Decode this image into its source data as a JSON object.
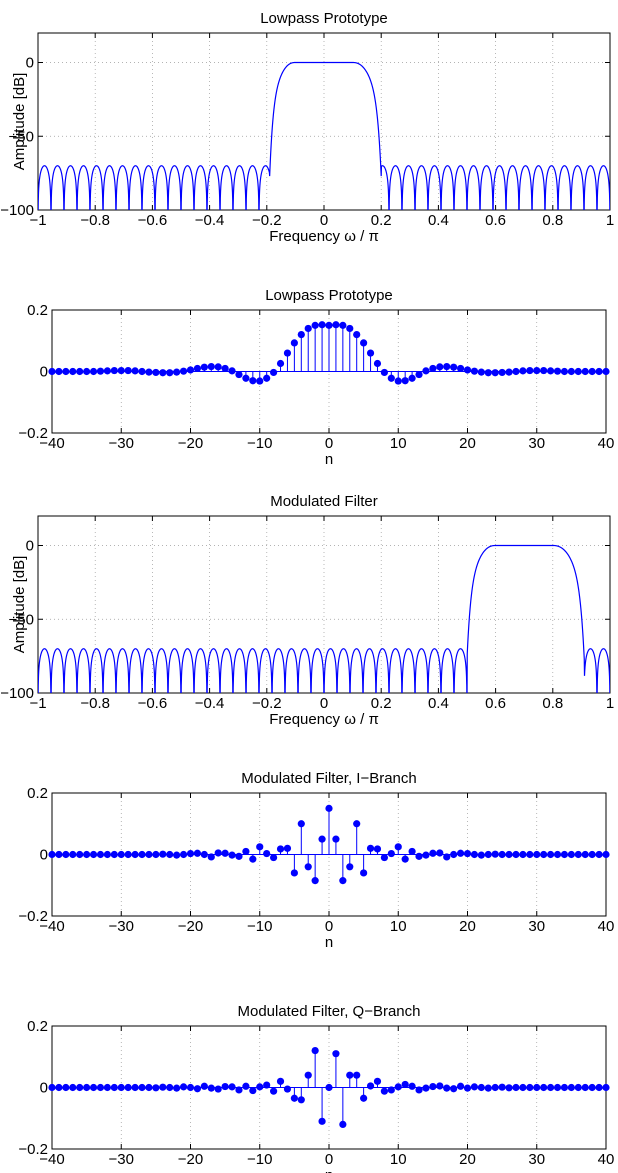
{
  "chart_data": [
    {
      "type": "line",
      "title": "Lowpass Prototype",
      "xlabel": "Frequency ω / π",
      "ylabel": "Amplitude [dB]",
      "xlim": [
        -1,
        1
      ],
      "ylim": [
        -100,
        20
      ],
      "xticks": [
        -1,
        -0.8,
        -0.6,
        -0.4,
        -0.2,
        0,
        0.2,
        0.4,
        0.6,
        0.8,
        1
      ],
      "xtick_labels": [
        "−1",
        "−0.8",
        "−0.6",
        "−0.4",
        "−0.2",
        "0",
        "0.2",
        "0.4",
        "0.6",
        "0.8",
        "1"
      ],
      "yticks": [
        -100,
        -50,
        0
      ],
      "ytick_labels": [
        "−100",
        "−50",
        "0"
      ],
      "grid": true,
      "color": "#0000ff",
      "response": {
        "passband": [
          -0.1,
          0.1
        ],
        "stopband_edges": [
          -0.19,
          0.2
        ],
        "stopband_peak_db": -70,
        "stopband_lobes_per_unit": 22
      }
    },
    {
      "type": "stem",
      "title": "Lowpass Prototype",
      "xlabel": "n",
      "ylabel": "",
      "xlim": [
        -40,
        40
      ],
      "ylim": [
        -0.2,
        0.2
      ],
      "xticks": [
        -40,
        -30,
        -20,
        -10,
        0,
        10,
        20,
        30,
        40
      ],
      "xtick_labels": [
        "−40",
        "−30",
        "−20",
        "−10",
        "0",
        "10",
        "20",
        "30",
        "40"
      ],
      "yticks": [
        -0.2,
        0,
        0.2
      ],
      "ytick_labels": [
        "−0.2",
        "0",
        "0.2"
      ],
      "grid": true,
      "color": "#0000ff",
      "n": [
        -40,
        -39,
        -38,
        -37,
        -36,
        -35,
        -34,
        -33,
        -32,
        -31,
        -30,
        -29,
        -28,
        -27,
        -26,
        -25,
        -24,
        -23,
        -22,
        -21,
        -20,
        -19,
        -18,
        -17,
        -16,
        -15,
        -14,
        -13,
        -12,
        -11,
        -10,
        -9,
        -8,
        -7,
        -6,
        -5,
        -4,
        -3,
        -2,
        -1,
        0,
        1,
        2,
        3,
        4,
        5,
        6,
        7,
        8,
        9,
        10,
        11,
        12,
        13,
        14,
        15,
        16,
        17,
        18,
        19,
        20,
        21,
        22,
        23,
        24,
        25,
        26,
        27,
        28,
        29,
        30,
        31,
        32,
        33,
        34,
        35,
        36,
        37,
        38,
        39,
        40
      ],
      "values": [
        0,
        0,
        0,
        0,
        0,
        0,
        0,
        0.001,
        0.002,
        0.003,
        0.003,
        0.003,
        0.002,
        0,
        -0.002,
        -0.003,
        -0.004,
        -0.004,
        -0.002,
        0.001,
        0.005,
        0.01,
        0.014,
        0.016,
        0.015,
        0.01,
        0.002,
        -0.01,
        -0.022,
        -0.03,
        -0.031,
        -0.022,
        -0.003,
        0.026,
        0.06,
        0.093,
        0.12,
        0.14,
        0.15,
        0.152,
        0.15,
        0.152,
        0.15,
        0.14,
        0.12,
        0.093,
        0.06,
        0.026,
        -0.003,
        -0.022,
        -0.031,
        -0.03,
        -0.022,
        -0.01,
        0.002,
        0.01,
        0.015,
        0.016,
        0.014,
        0.01,
        0.005,
        0.001,
        -0.002,
        -0.004,
        -0.004,
        -0.003,
        -0.002,
        0,
        0.002,
        0.003,
        0.003,
        0.003,
        0.002,
        0.001,
        0,
        0,
        0,
        0,
        0,
        0,
        0
      ]
    },
    {
      "type": "line",
      "title": "Modulated Filter",
      "xlabel": "Frequency ω / π",
      "ylabel": "Amplitude [dB]",
      "xlim": [
        -1,
        1
      ],
      "ylim": [
        -100,
        20
      ],
      "xticks": [
        -1,
        -0.8,
        -0.6,
        -0.4,
        -0.2,
        0,
        0.2,
        0.4,
        0.6,
        0.8,
        1
      ],
      "xtick_labels": [
        "−1",
        "−0.8",
        "−0.6",
        "−0.4",
        "−0.2",
        "0",
        "0.2",
        "0.4",
        "0.6",
        "0.8",
        "1"
      ],
      "yticks": [
        -100,
        -50,
        0
      ],
      "ytick_labels": [
        "−100",
        "−50",
        "0"
      ],
      "grid": true,
      "color": "#0000ff",
      "response": {
        "passband": [
          0.6,
          0.8
        ],
        "stopband_edges": [
          0.5,
          0.91
        ],
        "stopband_peak_db": -70,
        "stopband_lobes_per_unit": 22
      }
    },
    {
      "type": "stem",
      "title": "Modulated Filter, I−Branch",
      "xlabel": "n",
      "ylabel": "",
      "xlim": [
        -40,
        40
      ],
      "ylim": [
        -0.2,
        0.2
      ],
      "xticks": [
        -40,
        -30,
        -20,
        -10,
        0,
        10,
        20,
        30,
        40
      ],
      "xtick_labels": [
        "−40",
        "−30",
        "−20",
        "−10",
        "0",
        "10",
        "20",
        "30",
        "40"
      ],
      "yticks": [
        -0.2,
        0,
        0.2
      ],
      "ytick_labels": [
        "−0.2",
        "0",
        "0.2"
      ],
      "grid": true,
      "color": "#0000ff",
      "n": [
        -40,
        -39,
        -38,
        -37,
        -36,
        -35,
        -34,
        -33,
        -32,
        -31,
        -30,
        -29,
        -28,
        -27,
        -26,
        -25,
        -24,
        -23,
        -22,
        -21,
        -20,
        -19,
        -18,
        -17,
        -16,
        -15,
        -14,
        -13,
        -12,
        -11,
        -10,
        -9,
        -8,
        -7,
        -6,
        -5,
        -4,
        -3,
        -2,
        -1,
        0,
        1,
        2,
        3,
        4,
        5,
        6,
        7,
        8,
        9,
        10,
        11,
        12,
        13,
        14,
        15,
        16,
        17,
        18,
        19,
        20,
        21,
        22,
        23,
        24,
        25,
        26,
        27,
        28,
        29,
        30,
        31,
        32,
        33,
        34,
        35,
        36,
        37,
        38,
        39,
        40
      ],
      "values": [
        0,
        0,
        0,
        0,
        0,
        0,
        0,
        0,
        0,
        0,
        0,
        0,
        0,
        0,
        0,
        0,
        0.001,
        0,
        -0.002,
        0,
        0.003,
        0.004,
        0,
        -0.008,
        0.005,
        0.004,
        -0.002,
        -0.006,
        0.01,
        -0.015,
        0.025,
        0.003,
        -0.01,
        0.018,
        0.02,
        -0.06,
        0.1,
        -0.04,
        -0.085,
        0.05,
        0.15,
        0.05,
        -0.085,
        -0.04,
        0.1,
        -0.06,
        0.02,
        0.018,
        -0.01,
        0.003,
        0.025,
        -0.015,
        0.01,
        -0.006,
        -0.002,
        0.004,
        0.005,
        -0.008,
        0,
        0.004,
        0.003,
        0,
        -0.002,
        0,
        0.001,
        0,
        0,
        0,
        0,
        0,
        0,
        0,
        0,
        0,
        0,
        0,
        0,
        0,
        0,
        0,
        0
      ]
    },
    {
      "type": "stem",
      "title": "Modulated Filter, Q−Branch",
      "xlabel": "n",
      "ylabel": "",
      "xlim": [
        -40,
        40
      ],
      "ylim": [
        -0.2,
        0.2
      ],
      "xticks": [
        -40,
        -30,
        -20,
        -10,
        0,
        10,
        20,
        30,
        40
      ],
      "xtick_labels": [
        "−40",
        "−30",
        "−20",
        "−10",
        "0",
        "10",
        "20",
        "30",
        "40"
      ],
      "yticks": [
        -0.2,
        0,
        0.2
      ],
      "ytick_labels": [
        "−0.2",
        "0",
        "0.2"
      ],
      "grid": true,
      "color": "#0000ff",
      "n": [
        -40,
        -39,
        -38,
        -37,
        -36,
        -35,
        -34,
        -33,
        -32,
        -31,
        -30,
        -29,
        -28,
        -27,
        -26,
        -25,
        -24,
        -23,
        -22,
        -21,
        -20,
        -19,
        -18,
        -17,
        -16,
        -15,
        -14,
        -13,
        -12,
        -11,
        -10,
        -9,
        -8,
        -7,
        -6,
        -5,
        -4,
        -3,
        -2,
        -1,
        0,
        1,
        2,
        3,
        4,
        5,
        6,
        7,
        8,
        9,
        10,
        11,
        12,
        13,
        14,
        15,
        16,
        17,
        18,
        19,
        20,
        21,
        22,
        23,
        24,
        25,
        26,
        27,
        28,
        29,
        30,
        31,
        32,
        33,
        34,
        35,
        36,
        37,
        38,
        39,
        40
      ],
      "values": [
        0,
        0,
        0,
        0,
        0,
        0,
        0,
        0,
        0,
        0,
        0,
        0,
        0,
        0,
        0,
        -0.001,
        0.001,
        0,
        -0.002,
        0.002,
        0,
        -0.004,
        0.004,
        -0.002,
        -0.005,
        0.003,
        0.002,
        -0.008,
        0.004,
        -0.01,
        0.002,
        0.008,
        -0.012,
        0.02,
        -0.005,
        -0.035,
        -0.04,
        0.04,
        0.12,
        -0.11,
        0,
        0.11,
        -0.12,
        0.04,
        0.04,
        -0.035,
        0.005,
        0.02,
        -0.012,
        -0.008,
        0.002,
        0.01,
        0.004,
        -0.008,
        -0.002,
        0.003,
        0.005,
        -0.002,
        -0.004,
        0.004,
        -0.002,
        0.002,
        0,
        -0.002,
        0,
        0.001,
        -0.001,
        0,
        0,
        0,
        0,
        0,
        0,
        0,
        0,
        0,
        0,
        0,
        0,
        0,
        0
      ]
    }
  ]
}
